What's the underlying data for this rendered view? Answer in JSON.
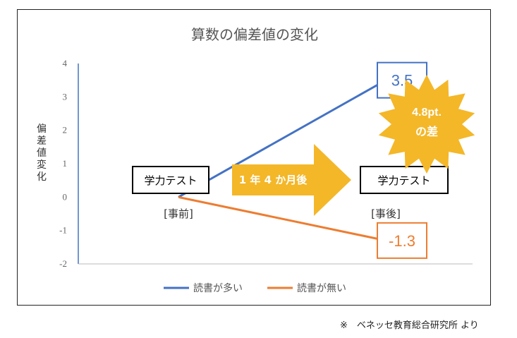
{
  "chart_data": {
    "type": "line",
    "title": "算数の偏差値の変化",
    "ylabel": "偏差値変化",
    "ylim": [
      -2,
      4
    ],
    "yticks": [
      "4",
      "3",
      "2",
      "1",
      "0",
      "-1",
      "-2"
    ],
    "categories": [
      "[事前]",
      "[事後]"
    ],
    "series": [
      {
        "name": "読書が多い",
        "color": "#4472C4",
        "values": [
          0,
          3.5
        ],
        "end_label": "3.5"
      },
      {
        "name": "読書が無い",
        "color": "#ED7D31",
        "values": [
          0,
          -1.3
        ],
        "end_label": "-1.3"
      }
    ],
    "annotations": {
      "test_label_before": "学力テスト",
      "test_label_after": "学力テスト",
      "arrow_text": "1 年 4 か月後",
      "arrow_color": "#F4B728",
      "burst_line1": "4.8pt.",
      "burst_line2": "の差",
      "burst_color": "#F4B728"
    },
    "grid": false,
    "legend_position": "bottom"
  },
  "source_note": "※　ベネッセ教育総合研究所 より"
}
